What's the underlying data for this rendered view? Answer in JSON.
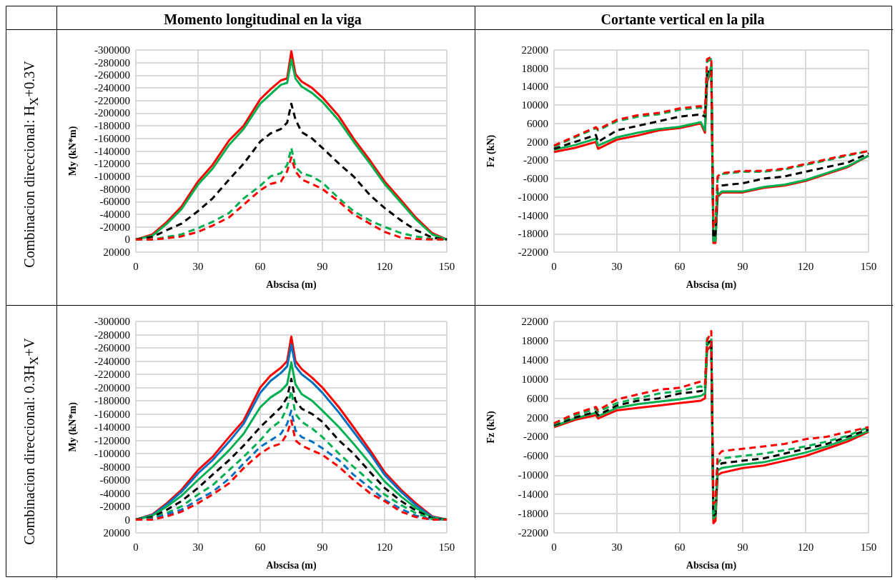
{
  "chart_data": [
    {
      "type": "line",
      "title": "Momento longitudinal en la viga",
      "xlabel": "Abscisa (m)",
      "ylabel": "My (kN*m)",
      "annotations": [
        "Combinacion direccional: H$_{X}$+0.3V"
      ],
      "xlim": [
        0,
        150
      ],
      "xticks": [
        0,
        30,
        60,
        90,
        120,
        150
      ],
      "ylim": [
        20000,
        -300000
      ],
      "yticks": [
        20000,
        0,
        -20000,
        -40000,
        -60000,
        -80000,
        -100000,
        -120000,
        -140000,
        -160000,
        -180000,
        -200000,
        -220000,
        -240000,
        -260000,
        -280000,
        -300000
      ],
      "grid": true,
      "marker": "none",
      "x": [
        0,
        8,
        15,
        22,
        30,
        37,
        45,
        52,
        60,
        65,
        70,
        73,
        75,
        77,
        80,
        85,
        90,
        98,
        105,
        113,
        120,
        128,
        135,
        143,
        150
      ],
      "series": [
        {
          "color": "#ff0000",
          "line_style": "solid",
          "values": [
            0,
            -8000,
            -28000,
            -52000,
            -92000,
            -118000,
            -157000,
            -180000,
            -222000,
            -238000,
            -252000,
            -255000,
            -298000,
            -262000,
            -250000,
            -240000,
            -225000,
            -195000,
            -160000,
            -125000,
            -92000,
            -62000,
            -35000,
            -10000,
            0
          ]
        },
        {
          "color": "#00b050",
          "line_style": "solid",
          "values": [
            0,
            -6000,
            -25000,
            -48000,
            -87000,
            -112000,
            -150000,
            -175000,
            -215000,
            -230000,
            -245000,
            -248000,
            -285000,
            -255000,
            -242000,
            -232000,
            -218000,
            -188000,
            -155000,
            -120000,
            -88000,
            -58000,
            -32000,
            -8000,
            0
          ]
        },
        {
          "color": "#000000",
          "line_style": "dashed",
          "values": [
            0,
            -4000,
            -15000,
            -25000,
            -45000,
            -65000,
            -95000,
            -120000,
            -155000,
            -168000,
            -175000,
            -185000,
            -215000,
            -190000,
            -170000,
            -160000,
            -145000,
            -120000,
            -100000,
            -70000,
            -50000,
            -30000,
            -15000,
            -3000,
            0
          ]
        },
        {
          "color": "#00b050",
          "line_style": "dashed",
          "values": [
            0,
            0,
            -4000,
            -8000,
            -18000,
            -28000,
            -42000,
            -65000,
            -85000,
            -100000,
            -105000,
            -118000,
            -145000,
            -115000,
            -105000,
            -100000,
            -90000,
            -65000,
            -45000,
            -30000,
            -20000,
            -10000,
            -5000,
            -1000,
            0
          ]
        },
        {
          "color": "#ff0000",
          "line_style": "dashed",
          "values": [
            0,
            0,
            -2000,
            -5000,
            -12000,
            -22000,
            -35000,
            -55000,
            -78000,
            -88000,
            -92000,
            -108000,
            -130000,
            -108000,
            -95000,
            -88000,
            -80000,
            -60000,
            -40000,
            -25000,
            -12000,
            -3000,
            -1000,
            0,
            0
          ]
        }
      ]
    },
    {
      "type": "line",
      "title": "Cortante vertical en la pila",
      "xlabel": "Abscisa (m)",
      "ylabel": "Fz (kN)",
      "xlim": [
        0,
        150
      ],
      "xticks": [
        0,
        30,
        60,
        90,
        120,
        150
      ],
      "ylim": [
        -22000,
        22000
      ],
      "yticks": [
        -22000,
        -18000,
        -14000,
        -10000,
        -6000,
        -2000,
        2000,
        6000,
        10000,
        14000,
        18000,
        22000
      ],
      "grid": true,
      "marker": "none",
      "x": [
        0,
        10,
        20,
        21,
        30,
        40,
        50,
        60,
        70,
        72,
        73,
        75,
        76,
        77,
        78,
        80,
        90,
        100,
        110,
        120,
        130,
        140,
        150
      ],
      "series": [
        {
          "color": "#ff0000",
          "line_style": "solid",
          "values": [
            -200,
            700,
            2000,
            500,
            2500,
            3400,
            4500,
            5000,
            6000,
            4000,
            15000,
            18000,
            -20000,
            -20000,
            -10000,
            -9000,
            -9000,
            -8000,
            -7500,
            -6500,
            -5000,
            -3500,
            -1000
          ]
        },
        {
          "color": "#00b050",
          "line_style": "solid",
          "values": [
            300,
            1300,
            2700,
            1200,
            3000,
            4000,
            4800,
            5300,
            6300,
            4500,
            15500,
            18500,
            -19500,
            -19500,
            -9500,
            -8800,
            -8800,
            -7800,
            -7300,
            -6300,
            -4800,
            -3300,
            -1000
          ]
        },
        {
          "color": "#000000",
          "line_style": "dashed",
          "values": [
            500,
            2000,
            3500,
            2000,
            4500,
            5500,
            6500,
            7500,
            8000,
            7500,
            17000,
            18000,
            -19000,
            -18000,
            -8000,
            -7500,
            -7000,
            -6000,
            -5500,
            -4500,
            -3500,
            -2500,
            -500
          ]
        },
        {
          "color": "#00b050",
          "line_style": "dashed",
          "values": [
            1000,
            3000,
            5000,
            4500,
            6500,
            7500,
            8000,
            9000,
            9500,
            8000,
            19500,
            20000,
            -16000,
            -15500,
            -6000,
            -5000,
            -4500,
            -4500,
            -4000,
            -3000,
            -2000,
            -1000,
            0
          ]
        },
        {
          "color": "#ff0000",
          "line_style": "dashed",
          "values": [
            1200,
            3200,
            5200,
            4700,
            6800,
            7800,
            8300,
            9300,
            9800,
            8300,
            20000,
            20500,
            -16500,
            -16000,
            -5500,
            -4800,
            -4300,
            -4300,
            -3800,
            -2800,
            -1800,
            -800,
            0
          ]
        }
      ]
    },
    {
      "type": "line",
      "xlabel": "Abscisa (m)",
      "ylabel": "My (kN*m)",
      "annotations": [
        "Combinacion direccional: 0.3H$_{X}$+V"
      ],
      "xlim": [
        0,
        150
      ],
      "xticks": [
        0,
        30,
        60,
        90,
        120,
        150
      ],
      "ylim": [
        20000,
        -300000
      ],
      "yticks": [
        20000,
        0,
        -20000,
        -40000,
        -60000,
        -80000,
        -100000,
        -120000,
        -140000,
        -160000,
        -180000,
        -200000,
        -220000,
        -240000,
        -260000,
        -280000,
        -300000
      ],
      "grid": true,
      "marker": "none",
      "x": [
        0,
        8,
        15,
        22,
        30,
        37,
        45,
        52,
        60,
        65,
        70,
        73,
        75,
        77,
        80,
        85,
        90,
        98,
        105,
        113,
        120,
        128,
        135,
        143,
        150
      ],
      "series": [
        {
          "color": "#ff0000",
          "line_style": "solid",
          "values": [
            0,
            -8000,
            -25000,
            -45000,
            -75000,
            -95000,
            -125000,
            -150000,
            -200000,
            -218000,
            -230000,
            -240000,
            -277000,
            -240000,
            -228000,
            -215000,
            -200000,
            -170000,
            -140000,
            -105000,
            -72000,
            -45000,
            -25000,
            -5000,
            0
          ]
        },
        {
          "color": "#0070c0",
          "line_style": "solid",
          "values": [
            0,
            -7000,
            -23000,
            -42000,
            -70000,
            -90000,
            -118000,
            -145000,
            -192000,
            -210000,
            -222000,
            -232000,
            -265000,
            -232000,
            -220000,
            -208000,
            -192000,
            -162000,
            -133000,
            -100000,
            -68000,
            -42000,
            -22000,
            -4000,
            0
          ]
        },
        {
          "color": "#00b050",
          "line_style": "solid",
          "values": [
            0,
            -6000,
            -20000,
            -36000,
            -60000,
            -80000,
            -105000,
            -130000,
            -170000,
            -185000,
            -195000,
            -205000,
            -238000,
            -205000,
            -190000,
            -180000,
            -165000,
            -140000,
            -115000,
            -85000,
            -58000,
            -35000,
            -18000,
            -3000,
            0
          ]
        },
        {
          "color": "#000000",
          "line_style": "dashed",
          "values": [
            0,
            -4000,
            -15000,
            -28000,
            -48000,
            -68000,
            -90000,
            -112000,
            -140000,
            -155000,
            -170000,
            -185000,
            -213000,
            -180000,
            -168000,
            -160000,
            -148000,
            -120000,
            -100000,
            -72000,
            -48000,
            -28000,
            -14000,
            -2000,
            0
          ]
        },
        {
          "color": "#00b050",
          "line_style": "dashed",
          "values": [
            0,
            -2000,
            -10000,
            -20000,
            -38000,
            -52000,
            -75000,
            -95000,
            -120000,
            -138000,
            -150000,
            -170000,
            -195000,
            -160000,
            -148000,
            -138000,
            -125000,
            -100000,
            -80000,
            -58000,
            -38000,
            -22000,
            -10000,
            -1000,
            0
          ]
        },
        {
          "color": "#0070c0",
          "line_style": "dashed",
          "values": [
            0,
            -1000,
            -8000,
            -15000,
            -30000,
            -42000,
            -62000,
            -85000,
            -110000,
            -120000,
            -130000,
            -145000,
            -165000,
            -135000,
            -125000,
            -118000,
            -108000,
            -90000,
            -68000,
            -48000,
            -30000,
            -16000,
            -6000,
            0,
            0
          ]
        },
        {
          "color": "#ff0000",
          "line_style": "dashed",
          "values": [
            0,
            0,
            -5000,
            -12000,
            -25000,
            -38000,
            -55000,
            -78000,
            -100000,
            -110000,
            -115000,
            -130000,
            -150000,
            -120000,
            -112000,
            -105000,
            -98000,
            -80000,
            -60000,
            -40000,
            -28000,
            -12000,
            -4000,
            0,
            0
          ]
        }
      ]
    },
    {
      "type": "line",
      "xlabel": "Abscisa (m)",
      "ylabel": "Fz (kN)",
      "xlim": [
        0,
        150
      ],
      "xticks": [
        0,
        30,
        60,
        90,
        120,
        150
      ],
      "ylim": [
        -22000,
        22000
      ],
      "yticks": [
        -22000,
        -18000,
        -14000,
        -10000,
        -6000,
        -2000,
        2000,
        6000,
        10000,
        14000,
        18000,
        22000
      ],
      "grid": true,
      "marker": "none",
      "x": [
        0,
        10,
        20,
        21,
        30,
        40,
        50,
        60,
        70,
        72,
        73,
        75,
        76,
        77,
        78,
        80,
        90,
        100,
        110,
        120,
        130,
        140,
        150
      ],
      "series": [
        {
          "color": "#ff0000",
          "line_style": "solid",
          "values": [
            0,
            1500,
            2500,
            1800,
            3500,
            4000,
            4500,
            5000,
            5500,
            6000,
            16000,
            17000,
            -20000,
            -19500,
            -10000,
            -9500,
            -8500,
            -8000,
            -7000,
            -6000,
            -4500,
            -3000,
            -1000
          ]
        },
        {
          "color": "#00b050",
          "line_style": "solid",
          "values": [
            200,
            1800,
            3000,
            2300,
            4000,
            4800,
            5300,
            5800,
            6500,
            7000,
            17000,
            18000,
            -19000,
            -18500,
            -9000,
            -8500,
            -7800,
            -7300,
            -6300,
            -5300,
            -4000,
            -2500,
            -800
          ]
        },
        {
          "color": "#000000",
          "line_style": "dashed",
          "values": [
            400,
            2000,
            3200,
            2500,
            4500,
            5500,
            6000,
            7000,
            7500,
            7800,
            17500,
            18000,
            -18500,
            -18000,
            -8500,
            -7500,
            -7000,
            -6500,
            -5500,
            -4500,
            -3500,
            -2000,
            -500
          ]
        },
        {
          "color": "#00b050",
          "line_style": "dashed",
          "values": [
            600,
            2500,
            3800,
            3200,
            5000,
            6000,
            7000,
            7500,
            8500,
            8000,
            18500,
            18500,
            -18000,
            -17500,
            -7500,
            -6500,
            -6000,
            -5500,
            -4800,
            -4000,
            -3000,
            -1800,
            0
          ]
        },
        {
          "color": "#ff0000",
          "line_style": "dashed",
          "values": [
            800,
            2800,
            4200,
            3500,
            5800,
            6800,
            7800,
            8200,
            9500,
            9000,
            18000,
            20000,
            -16000,
            -15500,
            -6000,
            -5000,
            -4500,
            -4000,
            -3500,
            -2500,
            -2000,
            -1000,
            0
          ]
        }
      ]
    }
  ]
}
